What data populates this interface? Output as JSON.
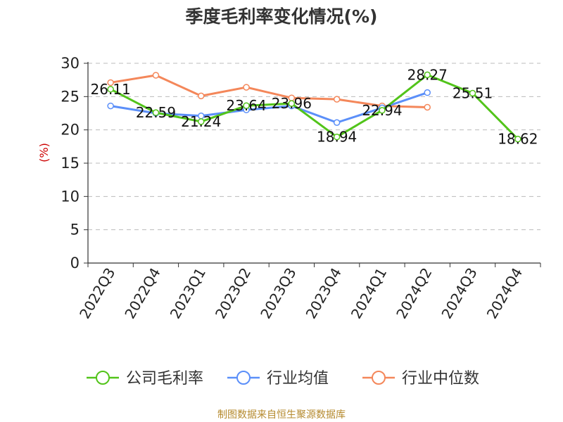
{
  "title": "季度毛利率变化情况(%)",
  "source": "制图数据来自恒生聚源数据库",
  "chart_data": {
    "type": "line",
    "title": "季度毛利率变化情况(%)",
    "ylabel": "(%)",
    "xlabel": "",
    "categories": [
      "2022Q3",
      "2022Q4",
      "2023Q1",
      "2023Q2",
      "2023Q3",
      "2023Q4",
      "2024Q1",
      "2024Q2",
      "2024Q3",
      "2024Q4"
    ],
    "ylim": [
      0,
      30
    ],
    "yticks": [
      0,
      5,
      10,
      15,
      20,
      25,
      30
    ],
    "grid": true,
    "legend_position": "bottom",
    "series": [
      {
        "name": "公司毛利率",
        "color": "#52c41a",
        "values": [
          26.11,
          22.59,
          21.24,
          23.64,
          23.96,
          18.94,
          22.94,
          28.27,
          25.51,
          18.62
        ],
        "labels": [
          "26.11",
          "22.59",
          "21.24",
          "23.64",
          "23.96",
          "18.94",
          "22.94",
          "28.27",
          "25.51",
          "18.62"
        ]
      },
      {
        "name": "行业均值",
        "color": "#5b8ff9",
        "values": [
          23.6,
          22.5,
          22.1,
          23.0,
          23.6,
          21.1,
          23.3,
          25.6,
          null,
          null
        ]
      },
      {
        "name": "行业中位数",
        "color": "#f4875a",
        "values": [
          27.1,
          28.2,
          25.1,
          26.4,
          24.8,
          24.6,
          23.6,
          23.4,
          null,
          null
        ]
      }
    ]
  }
}
